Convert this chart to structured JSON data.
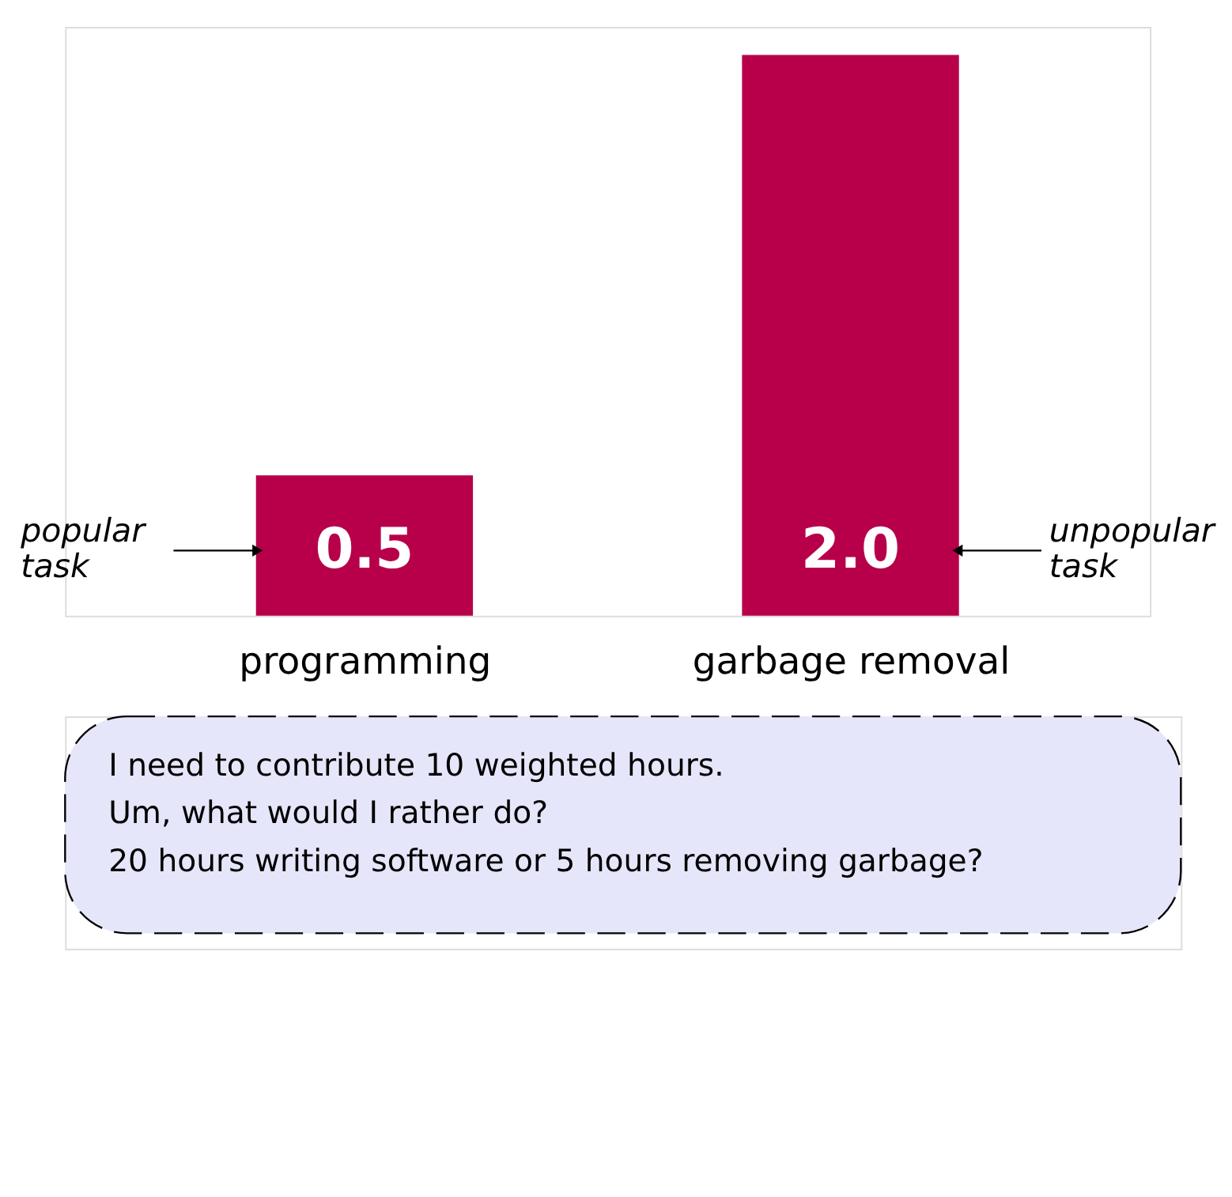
{
  "chart_data": {
    "type": "bar",
    "categories": [
      "programming",
      "garbage removal"
    ],
    "values": [
      0.5,
      2.0
    ],
    "value_labels": [
      "0.5",
      "2.0"
    ],
    "color": "#b8004a",
    "annotations": [
      "popular task",
      "unpopular task",
      "I need to contribute 10 weighted hours.\nUm, what would I rather do?\n20 hours writing software or 5 hours removing garbage?"
    ]
  }
}
